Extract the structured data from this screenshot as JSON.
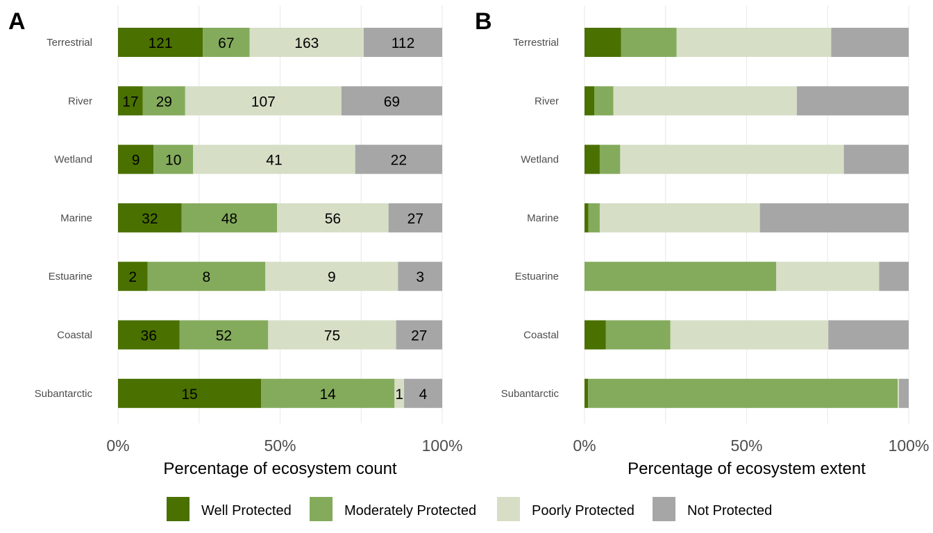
{
  "legend": [
    {
      "label": "Well Protected",
      "color": "#4a7000"
    },
    {
      "label": "Moderately Protected",
      "color": "#84ab5c"
    },
    {
      "label": "Poorly Protected",
      "color": "#d6dec6"
    },
    {
      "label": "Not Protected",
      "color": "#a6a6a6"
    }
  ],
  "chart_data": [
    {
      "type": "bar",
      "orientation": "horizontal",
      "stacked": "percent",
      "panel_label": "A",
      "xlabel": "Percentage of ecosystem count",
      "xticks": [
        "0%",
        "50%",
        "100%"
      ],
      "xlim": [
        0,
        100
      ],
      "grid": true,
      "legend_position": "bottom",
      "categories": [
        "Terrestrial",
        "River",
        "Wetland",
        "Marine",
        "Estuarine",
        "Coastal",
        "Subantarctic"
      ],
      "series": [
        {
          "name": "Well Protected",
          "values": [
            121,
            17,
            9,
            32,
            2,
            36,
            15
          ]
        },
        {
          "name": "Moderately Protected",
          "values": [
            67,
            29,
            10,
            48,
            8,
            52,
            14
          ]
        },
        {
          "name": "Poorly Protected",
          "values": [
            163,
            107,
            41,
            56,
            9,
            75,
            1
          ]
        },
        {
          "name": "Not Protected",
          "values": [
            112,
            69,
            22,
            27,
            3,
            27,
            4
          ]
        }
      ],
      "show_value_labels": true
    },
    {
      "type": "bar",
      "orientation": "horizontal",
      "stacked": "percent",
      "panel_label": "B",
      "xlabel": "Percentage of ecosystem extent",
      "xticks": [
        "0%",
        "50%",
        "100%"
      ],
      "xlim": [
        0,
        100
      ],
      "grid": true,
      "legend_position": "bottom",
      "categories": [
        "Terrestrial",
        "River",
        "Wetland",
        "Marine",
        "Estuarine",
        "Coastal",
        "Subantarctic"
      ],
      "series": [
        {
          "name": "Well Protected",
          "values": [
            11.3,
            3.0,
            4.7,
            1.2,
            0,
            6.6,
            1.1
          ]
        },
        {
          "name": "Moderately Protected",
          "values": [
            17.1,
            5.9,
            6.3,
            3.5,
            59.1,
            19.9,
            95.5
          ]
        },
        {
          "name": "Poorly Protected",
          "values": [
            47.7,
            56.6,
            69.0,
            49.4,
            31.8,
            48.7,
            0.4
          ]
        },
        {
          "name": "Not Protected",
          "values": [
            23.9,
            34.5,
            20.0,
            45.9,
            9.1,
            24.8,
            3.0
          ]
        }
      ],
      "show_value_labels": false
    }
  ]
}
